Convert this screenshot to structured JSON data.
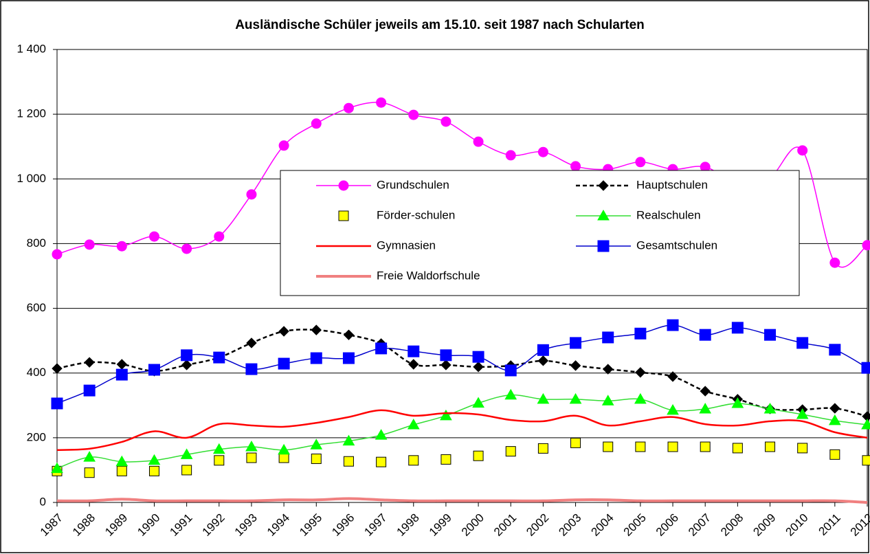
{
  "chart_data": {
    "type": "line",
    "title": "Ausländische Schüler jeweils am 15.10. seit 1987 nach Schularten",
    "categories": [
      "1987",
      "1988",
      "1989",
      "1990",
      "1991",
      "1992",
      "1993",
      "1994",
      "1995",
      "1996",
      "1997",
      "1998",
      "1999",
      "2000",
      "2001",
      "2002",
      "2003",
      "2004",
      "2005",
      "2006",
      "2007",
      "2008",
      "2009",
      "2010",
      "2011",
      "2012"
    ],
    "ylim": [
      0,
      1400
    ],
    "yticks": [
      0,
      200,
      400,
      600,
      800,
      {
        "value": 1000,
        "label": "1 000"
      },
      {
        "value": 1200,
        "label": "1 200"
      },
      {
        "value": 1400,
        "label": "1 400"
      }
    ],
    "grid": true,
    "smooth": true,
    "series": [
      {
        "name": "Grundschulen",
        "color": "#ff00ff",
        "marker": "circle",
        "marker_color": "#ff00ff",
        "line": true,
        "dash": false,
        "line_width": 1.5,
        "values": [
          767,
          797,
          792,
          822,
          784,
          822,
          952,
          1103,
          1171,
          1219,
          1236,
          1198,
          1177,
          1115,
          1073,
          1083,
          1039,
          1030,
          1052,
          1030,
          1037,
          984,
          1005,
          1088,
          741,
          795
        ]
      },
      {
        "name": "Hauptschulen",
        "color": "#000000",
        "marker": "diamond",
        "marker_color": "#000000",
        "line": true,
        "dash": true,
        "line_width": 2.5,
        "values": [
          414,
          433,
          427,
          406,
          425,
          448,
          493,
          529,
          533,
          518,
          491,
          427,
          425,
          419,
          423,
          438,
          423,
          412,
          402,
          389,
          344,
          319,
          289,
          287,
          291,
          266
        ]
      },
      {
        "name": "Förder-schulen",
        "color": "#000000",
        "marker": "square",
        "marker_color": "#ffff00",
        "line": false,
        "dash": false,
        "line_width": 1,
        "values": [
          97,
          92,
          97,
          97,
          100,
          130,
          138,
          138,
          135,
          127,
          125,
          130,
          133,
          144,
          158,
          167,
          184,
          172,
          172,
          172,
          172,
          168,
          172,
          168,
          148,
          130
        ]
      },
      {
        "name": "Realschulen",
        "color": "#33dd33",
        "marker": "triangle",
        "marker_color": "#00ff00",
        "line": true,
        "dash": false,
        "line_width": 1.5,
        "values": [
          105,
          140,
          126,
          130,
          148,
          164,
          172,
          162,
          178,
          190,
          208,
          240,
          268,
          307,
          332,
          319,
          319,
          314,
          319,
          285,
          289,
          306,
          289,
          272,
          253,
          240
        ]
      },
      {
        "name": "Gymnasien",
        "color": "#ff0000",
        "marker": "none",
        "marker_color": "#ff0000",
        "line": true,
        "dash": false,
        "line_width": 2.5,
        "values": [
          162,
          166,
          187,
          220,
          200,
          242,
          238,
          234,
          246,
          264,
          285,
          268,
          276,
          272,
          255,
          251,
          268,
          238,
          251,
          264,
          242,
          238,
          251,
          251,
          217,
          200
        ]
      },
      {
        "name": "Gesamtschulen",
        "color": "#0000cc",
        "marker": "square",
        "marker_color": "#0000ff",
        "line": true,
        "dash": false,
        "line_width": 1.5,
        "values": [
          306,
          346,
          395,
          410,
          455,
          448,
          412,
          429,
          446,
          446,
          476,
          467,
          455,
          450,
          408,
          471,
          493,
          510,
          522,
          548,
          518,
          540,
          518,
          493,
          472,
          416
        ]
      },
      {
        "name": "Freie Waldorfschule",
        "color": "#f08080",
        "marker": "none",
        "marker_color": "#f08080",
        "line": true,
        "dash": false,
        "line_width": 4,
        "values": [
          5,
          5,
          10,
          5,
          5,
          5,
          5,
          8,
          8,
          12,
          8,
          5,
          5,
          5,
          5,
          5,
          8,
          8,
          5,
          5,
          5,
          5,
          5,
          5,
          5,
          0
        ]
      }
    ]
  }
}
